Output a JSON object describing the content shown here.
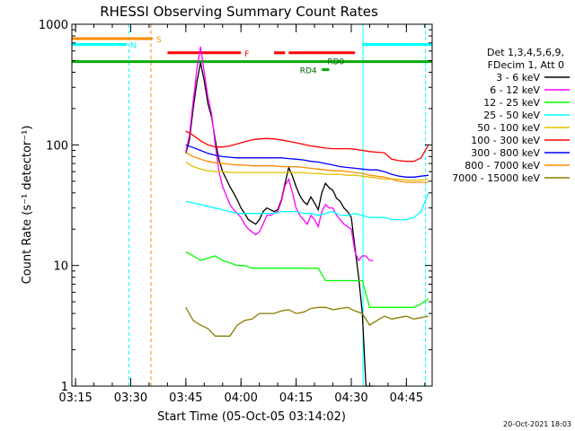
{
  "chart_data": {
    "type": "line",
    "title": "RHESSI Observing Summary Count Rates",
    "xlabel": "Start Time (05-Oct-05 03:14:02)",
    "ylabel": "Count Rate (s⁻¹ detector⁻¹)",
    "yscale": "log",
    "ylim": [
      1,
      1000
    ],
    "xlim_minutes": [
      0,
      98
    ],
    "x_unit": "minutes after 03:14:02",
    "x_ticks": [
      {
        "label": "03:15",
        "t": 1
      },
      {
        "label": "03:30",
        "t": 16
      },
      {
        "label": "03:45",
        "t": 31
      },
      {
        "label": "04:00",
        "t": 46
      },
      {
        "label": "04:15",
        "t": 61
      },
      {
        "label": "04:30",
        "t": 76
      },
      {
        "label": "04:45",
        "t": 91
      }
    ],
    "y_ticks": [
      {
        "label": "1",
        "v": 1
      },
      {
        "label": "10",
        "v": 10
      },
      {
        "label": "100",
        "v": 100
      },
      {
        "label": "1000",
        "v": 1000
      }
    ],
    "grid": false,
    "legend": {
      "placement": "right",
      "header": [
        "Det 1,3,4,5,6,9,",
        "FDecim 1, Att 0"
      ],
      "entries": [
        {
          "label": "3 - 6 keV",
          "color": "#000000"
        },
        {
          "label": "6 - 12 keV",
          "color": "#ff00ff"
        },
        {
          "label": "12 - 25 keV",
          "color": "#00ff00"
        },
        {
          "label": "25 - 50 keV",
          "color": "#00ffff"
        },
        {
          "label": "50 - 100 keV",
          "color": "#e0c000"
        },
        {
          "label": "100 - 300 keV",
          "color": "#ff0000"
        },
        {
          "label": "300 - 800 keV",
          "color": "#0000ff"
        },
        {
          "label": "800 - 7000 keV",
          "color": "#ff8c00"
        },
        {
          "label": "7000 - 15000 keV",
          "color": "#8b7d00"
        }
      ]
    },
    "series": [
      {
        "name": "3 - 6 keV",
        "color": "#000000",
        "x": [
          31,
          32,
          33,
          34,
          35,
          36,
          37,
          38,
          39,
          40,
          41,
          42,
          43,
          44,
          45,
          46,
          47,
          48,
          49,
          50,
          51,
          52,
          53,
          54,
          55,
          56,
          57,
          58,
          59,
          60,
          61,
          62,
          63,
          64,
          65,
          66,
          67,
          68,
          69,
          70,
          71,
          72,
          73,
          74,
          75,
          76,
          77,
          78,
          79,
          80,
          81,
          82
        ],
        "y": [
          85,
          110,
          200,
          330,
          480,
          340,
          220,
          170,
          110,
          75,
          60,
          52,
          45,
          40,
          35,
          30,
          27,
          24,
          23,
          22,
          24,
          28,
          30,
          29,
          28,
          29,
          35,
          48,
          65,
          55,
          45,
          38,
          34,
          32,
          37,
          33,
          29,
          40,
          48,
          44,
          42,
          36,
          34,
          30,
          28,
          25,
          14,
          8,
          4,
          1,
          1,
          1
        ]
      },
      {
        "name": "6 - 12 keV",
        "color": "#ff00ff",
        "x": [
          31,
          32,
          33,
          34,
          35,
          36,
          37,
          38,
          39,
          40,
          41,
          42,
          43,
          44,
          45,
          46,
          47,
          48,
          49,
          50,
          51,
          52,
          53,
          54,
          55,
          56,
          57,
          58,
          59,
          60,
          61,
          62,
          63,
          64,
          65,
          66,
          67,
          68,
          69,
          70,
          71,
          72,
          73,
          74,
          75,
          76,
          77,
          78,
          79,
          80,
          81,
          82
        ],
        "y": [
          88,
          120,
          230,
          420,
          650,
          400,
          250,
          180,
          100,
          60,
          45,
          38,
          32,
          29,
          27,
          25,
          22,
          20,
          19,
          18,
          19,
          22,
          26,
          26,
          27,
          28,
          34,
          46,
          52,
          40,
          30,
          26,
          24,
          22,
          26,
          24,
          21,
          28,
          32,
          30,
          30,
          26,
          24,
          22,
          21,
          20,
          13,
          11,
          12,
          12,
          11,
          11
        ]
      },
      {
        "name": "12 - 25 keV",
        "color": "#00ff00",
        "x": [
          31,
          33,
          35,
          37,
          39,
          41,
          43,
          45,
          47,
          49,
          51,
          53,
          55,
          57,
          59,
          61,
          63,
          65,
          67,
          69,
          71,
          73,
          75,
          77,
          79,
          81,
          83,
          85,
          87,
          89,
          91,
          93,
          95,
          97
        ],
        "y": [
          13,
          12,
          11,
          11.5,
          12,
          11,
          10.5,
          10,
          10,
          9.5,
          9.5,
          9.5,
          9.5,
          9.5,
          9.5,
          9.5,
          9.5,
          9.5,
          9.5,
          7.5,
          7.5,
          7.5,
          7.5,
          7.5,
          7.5,
          4.5,
          4.5,
          4.5,
          4.5,
          4.5,
          4.5,
          4.5,
          4.8,
          5.3
        ]
      },
      {
        "name": "25 - 50 keV",
        "color": "#00ffff",
        "x": [
          31,
          33,
          35,
          37,
          39,
          41,
          43,
          45,
          47,
          49,
          51,
          53,
          55,
          57,
          59,
          61,
          63,
          65,
          67,
          69,
          71,
          73,
          75,
          77,
          79,
          81,
          83,
          85,
          87,
          89,
          91,
          93,
          95,
          97
        ],
        "y": [
          34,
          33,
          32,
          31,
          30,
          29,
          28,
          27,
          27,
          27,
          27,
          27,
          27,
          28,
          28,
          28,
          27,
          27,
          26,
          27,
          28,
          26,
          26,
          27,
          26,
          25,
          25,
          25,
          24,
          24,
          24,
          25,
          28,
          40
        ]
      },
      {
        "name": "50 - 100 keV",
        "color": "#e0c000",
        "x": [
          31,
          33,
          35,
          37,
          39,
          41,
          43,
          45,
          47,
          49,
          51,
          53,
          55,
          57,
          59,
          61,
          63,
          65,
          67,
          69,
          71,
          73,
          75,
          77,
          79,
          81,
          83,
          85,
          87,
          89,
          91,
          93,
          95,
          97
        ],
        "y": [
          72,
          66,
          63,
          61,
          60,
          60,
          59,
          59,
          59,
          59,
          59,
          59,
          59,
          59,
          59,
          59,
          59,
          58,
          58,
          57,
          57,
          57,
          56,
          56,
          55,
          54,
          53,
          52,
          52,
          52,
          51,
          51,
          51,
          52
        ]
      },
      {
        "name": "100 - 300 keV",
        "color": "#ff0000",
        "x": [
          31,
          33,
          35,
          37,
          39,
          41,
          43,
          45,
          47,
          49,
          51,
          53,
          55,
          57,
          59,
          61,
          63,
          65,
          67,
          69,
          71,
          73,
          75,
          77,
          79,
          81,
          83,
          85,
          87,
          89,
          91,
          93,
          95,
          97
        ],
        "y": [
          130,
          120,
          108,
          100,
          96,
          96,
          98,
          102,
          106,
          110,
          112,
          113,
          112,
          110,
          107,
          104,
          101,
          98,
          96,
          94,
          93,
          93,
          93,
          92,
          90,
          88,
          87,
          86,
          76,
          74,
          73,
          73,
          78,
          100
        ]
      },
      {
        "name": "300 - 800 keV",
        "color": "#0000ff",
        "x": [
          31,
          33,
          35,
          37,
          39,
          41,
          43,
          45,
          47,
          49,
          51,
          53,
          55,
          57,
          59,
          61,
          63,
          65,
          67,
          69,
          71,
          73,
          75,
          77,
          79,
          81,
          83,
          85,
          87,
          89,
          91,
          93,
          95,
          97
        ],
        "y": [
          100,
          95,
          90,
          85,
          82,
          80,
          79,
          78,
          78,
          78,
          78,
          78,
          78,
          78,
          77,
          76,
          75,
          73,
          72,
          70,
          68,
          66,
          65,
          64,
          63,
          62,
          62,
          60,
          57,
          55,
          54,
          54,
          55,
          56
        ]
      },
      {
        "name": "800 - 7000 keV",
        "color": "#ff8c00",
        "x": [
          31,
          33,
          35,
          37,
          39,
          41,
          43,
          45,
          47,
          49,
          51,
          53,
          55,
          57,
          59,
          61,
          63,
          65,
          67,
          69,
          71,
          73,
          75,
          77,
          79,
          81,
          83,
          85,
          87,
          89,
          91,
          93,
          95,
          97
        ],
        "y": [
          86,
          80,
          76,
          73,
          71,
          70,
          69,
          68,
          68,
          67,
          67,
          67,
          67,
          66,
          66,
          66,
          65,
          64,
          63,
          62,
          61,
          61,
          60,
          59,
          58,
          56,
          55,
          54,
          52,
          50,
          49,
          49,
          49,
          49
        ]
      },
      {
        "name": "7000 - 15000 keV",
        "color": "#8b7d00",
        "x": [
          31,
          33,
          35,
          37,
          39,
          41,
          43,
          45,
          47,
          49,
          51,
          53,
          55,
          57,
          59,
          61,
          63,
          65,
          67,
          69,
          71,
          73,
          75,
          77,
          79,
          81,
          83,
          85,
          87,
          89,
          91,
          93,
          95,
          97
        ],
        "y": [
          4.5,
          3.5,
          3.2,
          3.0,
          2.6,
          2.6,
          2.6,
          3.2,
          3.5,
          3.6,
          4.0,
          4.0,
          4.0,
          4.2,
          4.3,
          4.0,
          4.1,
          4.4,
          4.5,
          4.5,
          4.3,
          4.4,
          4.5,
          4.2,
          4.0,
          3.2,
          3.5,
          3.8,
          3.6,
          3.7,
          3.8,
          3.6,
          3.7,
          3.8
        ]
      }
    ],
    "flag_bars": [
      {
        "label": "S",
        "color": "#ff8c00",
        "y": 760,
        "ranges": [
          [
            0,
            22
          ]
        ]
      },
      {
        "label": "N",
        "color": "#00ffff",
        "y": 680,
        "ranges": [
          [
            0,
            15
          ],
          [
            79,
            98
          ]
        ]
      },
      {
        "label": "F",
        "color": "#ff0000",
        "y": 580,
        "ranges": [
          [
            26,
            46
          ],
          [
            55,
            58
          ],
          [
            59,
            77
          ]
        ]
      },
      {
        "label": "RD0",
        "color": "#00aa00",
        "y": 490,
        "ranges": [
          [
            0,
            98
          ]
        ]
      },
      {
        "label": "RD4",
        "color": "#00aa00",
        "y": 420,
        "ranges": [
          [
            68,
            70
          ]
        ]
      }
    ],
    "vlines": [
      {
        "t": 15.5,
        "color": "#00ffff",
        "dash": true
      },
      {
        "t": 21.5,
        "color": "#ff8c00",
        "dash": true
      },
      {
        "t": 79.2,
        "color": "#00ffff",
        "dash": false
      },
      {
        "t": 96.2,
        "color": "#00ffff",
        "dash": true
      }
    ]
  },
  "footer": {
    "timestamp": "20-Oct-2021 18:03"
  }
}
